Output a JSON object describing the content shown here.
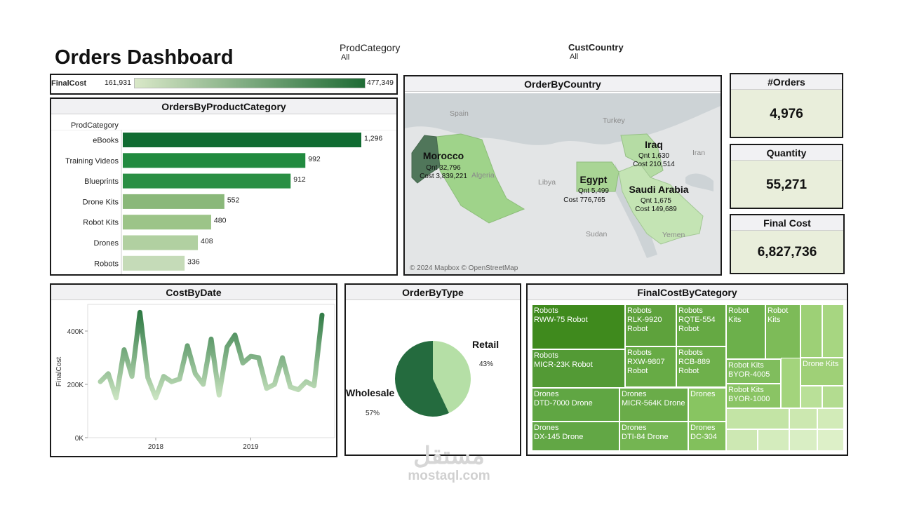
{
  "header": {
    "title": "Orders Dashboard",
    "filters": [
      {
        "label": "ProdCategory",
        "value": "All"
      },
      {
        "label": "CustCountry",
        "value": "All"
      }
    ]
  },
  "color_legend": {
    "label": "FinalCost",
    "min": "161,931",
    "max": "477,349",
    "colors": [
      "#d9e8c8",
      "#1f6b35"
    ]
  },
  "category_chart": {
    "title": "OrdersByProductCategory",
    "column_header": "ProdCategory",
    "chart_data": {
      "type": "bar",
      "categories": [
        "eBooks",
        "Training Videos",
        "Blueprints",
        "Drone Kits",
        "Robot Kits",
        "Drones",
        "Robots"
      ],
      "values": [
        1296,
        992,
        912,
        552,
        480,
        408,
        336
      ],
      "labels": [
        "1,296",
        "992",
        "912",
        "552",
        "480",
        "408",
        "336"
      ],
      "colors": [
        "#106b31",
        "#218a3f",
        "#2a8f44",
        "#8ab87a",
        "#9cc488",
        "#b1d0a1",
        "#c5dbb8"
      ]
    }
  },
  "map": {
    "title": "OrderByCountry",
    "attribution": "© 2024 Mapbox © OpenStreetMap",
    "place_labels": [
      "Spain",
      "Turkey",
      "Iran",
      "Libya",
      "Algeria",
      "Sudan",
      "Yemen"
    ],
    "countries": [
      {
        "name": "Morocco",
        "qnt": "Qnt 32,796",
        "cost": "Cost 3,839,221",
        "color": "#50765a"
      },
      {
        "name": "Iraq",
        "qnt": "Qnt 1,630",
        "cost": "Cost 210,514",
        "color": "#b5dca4"
      },
      {
        "name": "Egypt",
        "qnt": "Qnt 5,499",
        "cost": "Cost 776,765",
        "color": "#a9d595"
      },
      {
        "name": "Saudi Arabia",
        "qnt": "Qnt 1,675",
        "cost": "Cost 149,689",
        "color": "#c4e4b4"
      }
    ]
  },
  "kpis": [
    {
      "title": "#Orders",
      "value": "4,976"
    },
    {
      "title": "Quantity",
      "value": "55,271"
    },
    {
      "title": "Final Cost",
      "value": "6,827,736"
    }
  ],
  "cost_by_date": {
    "title": "CostByDate",
    "chart_data": {
      "type": "line",
      "ylabel": "FinalCost",
      "xlabel": "",
      "x_ticks": [
        "2018",
        "2019"
      ],
      "y_ticks": [
        "0K",
        "200K",
        "400K"
      ],
      "ylim": [
        0,
        500000
      ],
      "x": [
        "2017-06",
        "2017-07",
        "2017-08",
        "2017-09",
        "2017-10",
        "2017-11",
        "2017-12",
        "2018-01",
        "2018-02",
        "2018-03",
        "2018-04",
        "2018-05",
        "2018-06",
        "2018-07",
        "2018-08",
        "2018-09",
        "2018-10",
        "2018-11",
        "2018-12",
        "2019-01",
        "2019-02",
        "2019-03",
        "2019-04",
        "2019-05",
        "2019-06",
        "2019-07",
        "2019-08",
        "2019-09",
        "2019-10"
      ],
      "values": [
        210000,
        240000,
        150000,
        330000,
        230000,
        470000,
        225000,
        150000,
        230000,
        210000,
        220000,
        345000,
        240000,
        200000,
        370000,
        160000,
        340000,
        385000,
        280000,
        305000,
        300000,
        185000,
        200000,
        300000,
        190000,
        180000,
        210000,
        195000,
        460000
      ]
    }
  },
  "order_by_type": {
    "title": "OrderByType",
    "chart_data": {
      "type": "pie",
      "categories": [
        "Retail",
        "Wholesale"
      ],
      "values": [
        43,
        57
      ],
      "labels": [
        "43%",
        "57%"
      ],
      "colors": [
        "#b5dfa6",
        "#246b3e"
      ]
    }
  },
  "treemap": {
    "title": "FinalCostByCategory",
    "cells": [
      {
        "category": "Robots",
        "item": "RWW-75 Robot",
        "color": "#3f8a1d"
      },
      {
        "category": "Robots",
        "item": "RLK-9920 Robot",
        "color": "#5ea23c"
      },
      {
        "category": "Robots",
        "item": "RQTE-554 Robot",
        "color": "#65a943"
      },
      {
        "category": "Robot Kits",
        "item": "",
        "color": "#6cb04b"
      },
      {
        "category": "Robot Kits",
        "item": "",
        "color": "#7dbb58"
      },
      {
        "category": "Robots",
        "item": "MICR-23K Robot",
        "color": "#539a35"
      },
      {
        "category": "Robots",
        "item": "RXW-9807 Robot",
        "color": "#67ab45"
      },
      {
        "category": "Robots",
        "item": "RCB-889 Robot",
        "color": "#6eb04b"
      },
      {
        "category": "Robot Kits",
        "item": "BYOR-4005",
        "color": "#80bd5d"
      },
      {
        "category": "Robot Kits",
        "item": "BYOR-1000",
        "color": "#8ac464"
      },
      {
        "category": "Drone Kits",
        "item": "",
        "color": "#9fd077"
      },
      {
        "category": "Drones",
        "item": "DTD-7000 Drone",
        "color": "#60a643"
      },
      {
        "category": "Drones",
        "item": "MICR-564K Drone",
        "color": "#6aac49"
      },
      {
        "category": "Drones",
        "item": "",
        "color": "#88c561"
      },
      {
        "category": "Drones",
        "item": "DX-145 Drone",
        "color": "#62a745"
      },
      {
        "category": "Drones",
        "item": "DTI-84 Drone",
        "color": "#74b552"
      },
      {
        "category": "Drones",
        "item": "DC-304",
        "color": "#82c05c"
      }
    ]
  },
  "watermark": {
    "arabic": "مستقل",
    "latin": "mostaql.com"
  }
}
